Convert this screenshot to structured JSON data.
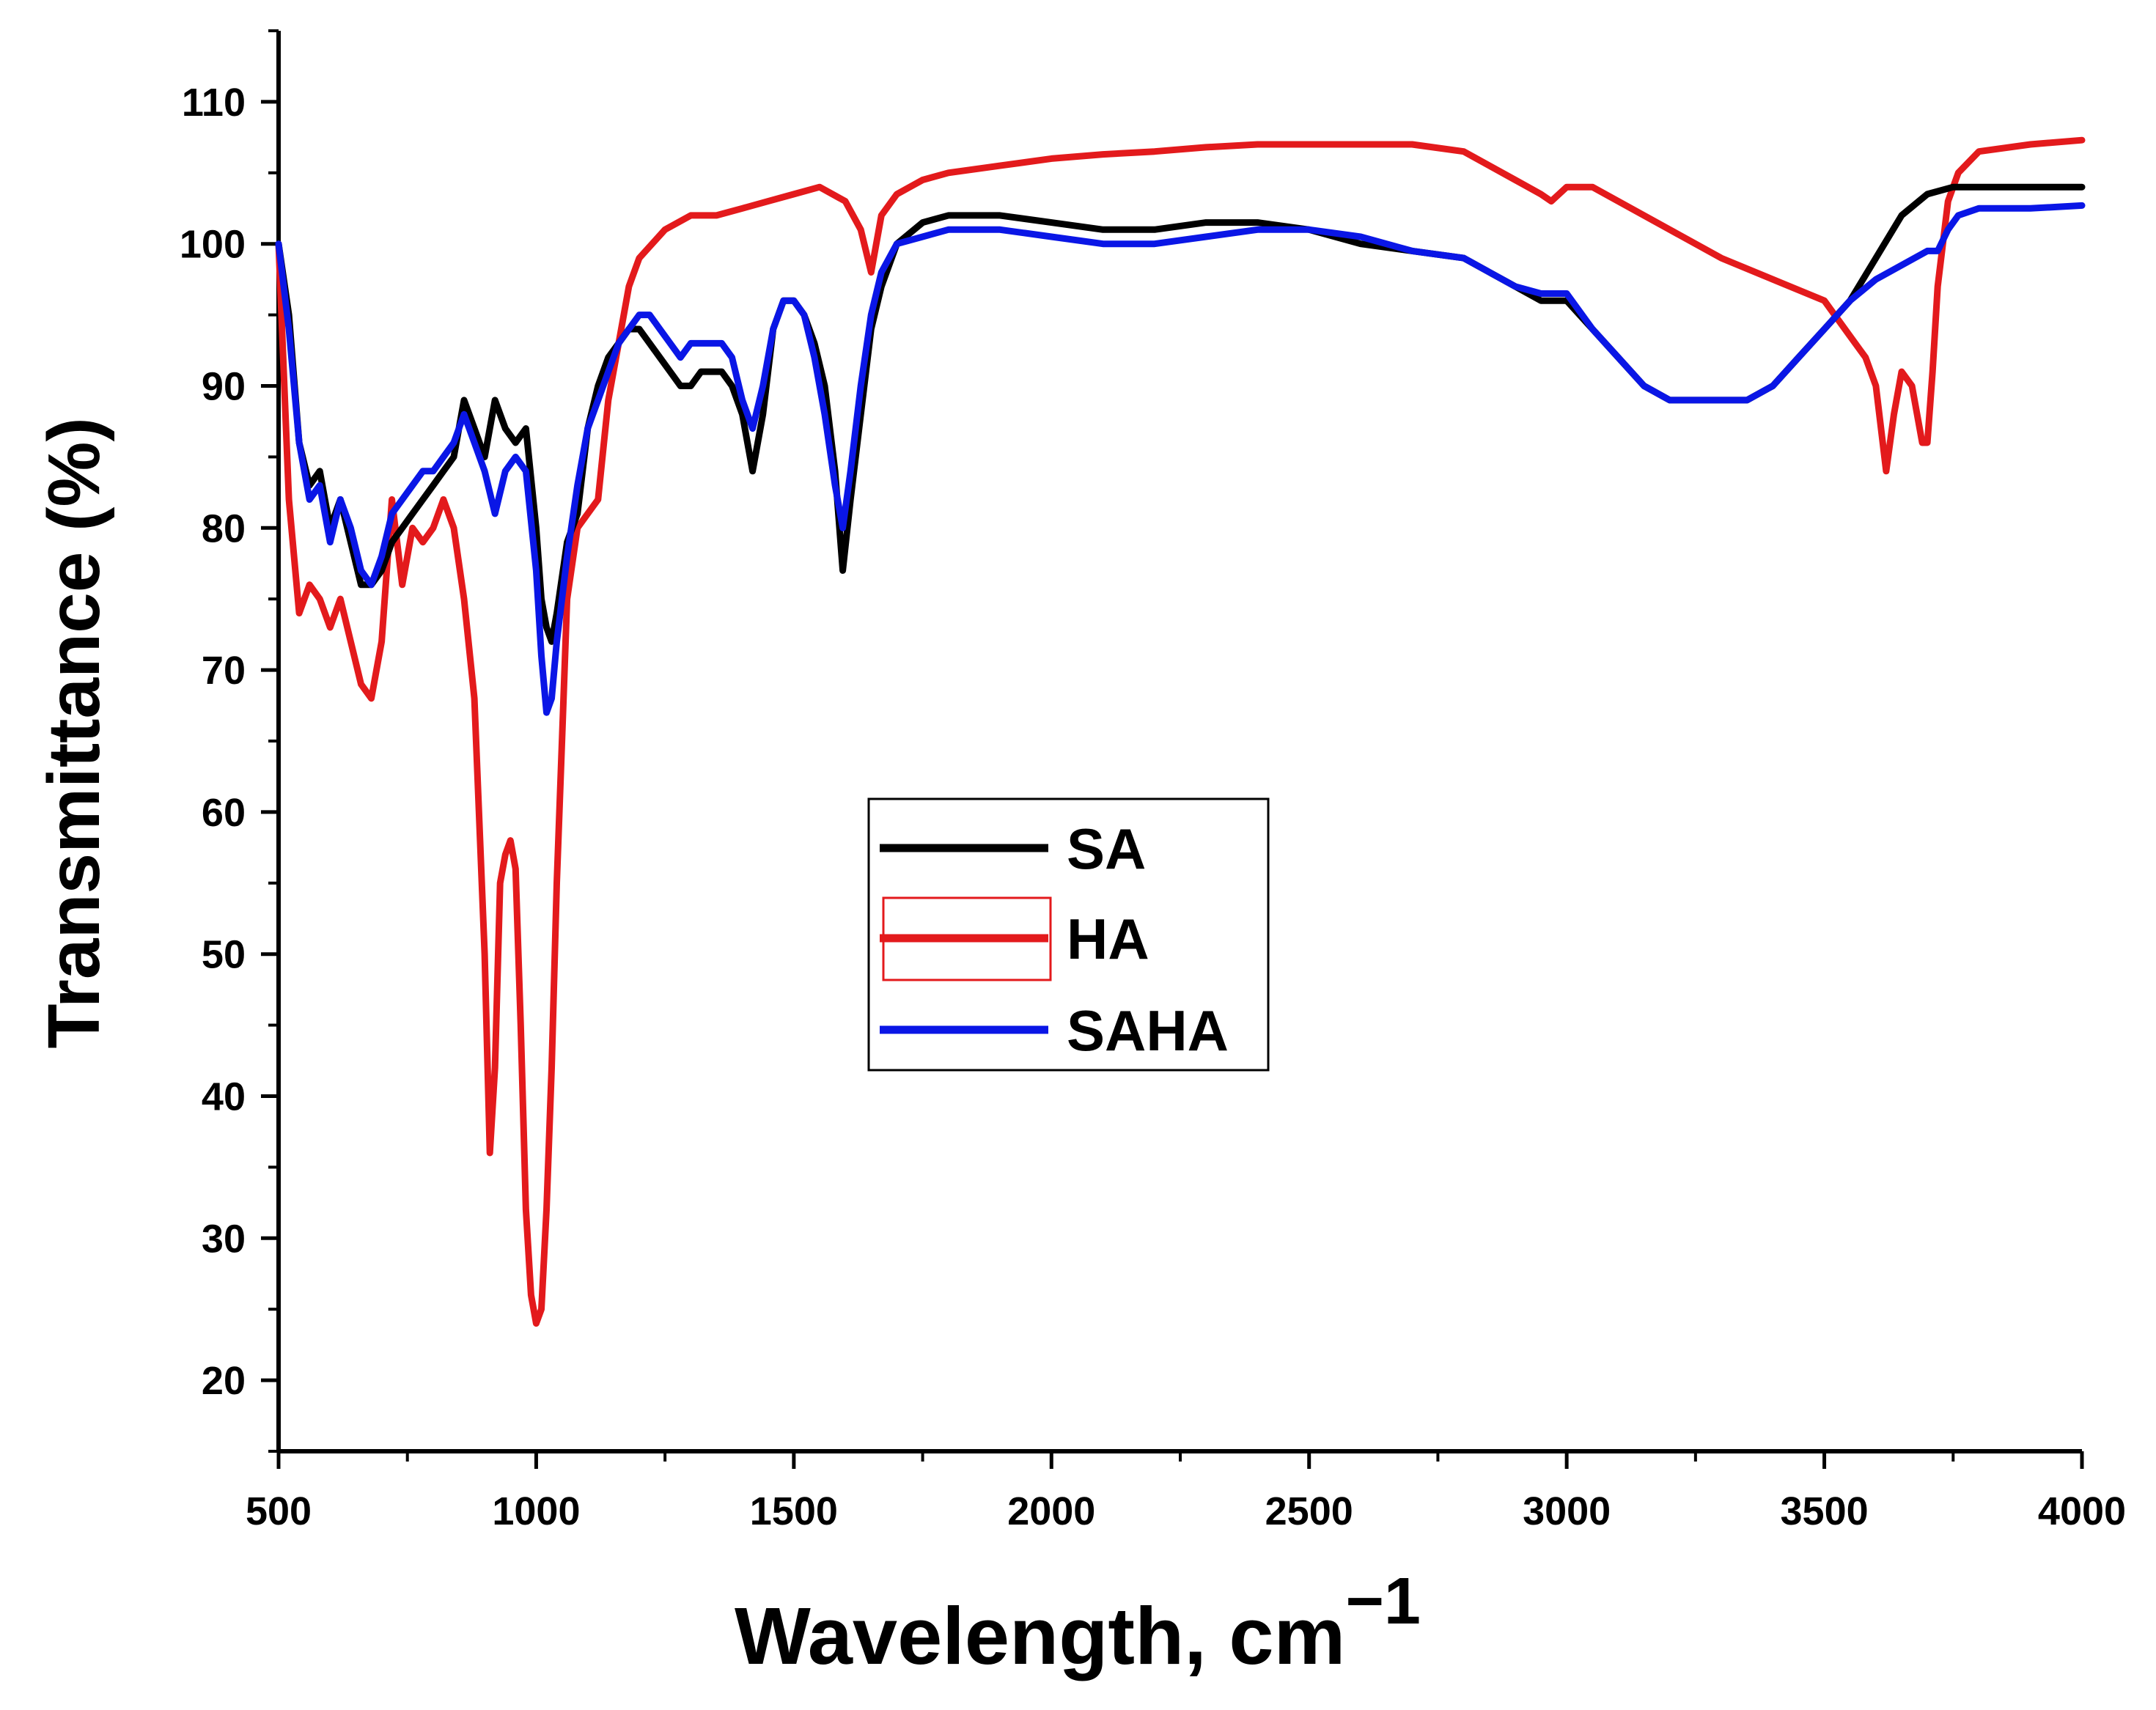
{
  "chart_data": {
    "type": "line",
    "title": "",
    "xlabel": "Wavelength, cm",
    "xlabel_superscript": "−1",
    "ylabel": "Transmittance (%)",
    "xlim": [
      500,
      4000
    ],
    "ylim": [
      15,
      115
    ],
    "xticks": [
      500,
      1000,
      1500,
      2000,
      2500,
      3000,
      3500,
      4000
    ],
    "yticks": [
      20,
      30,
      40,
      50,
      60,
      70,
      80,
      90,
      100,
      110
    ],
    "legend_position": "center",
    "series": [
      {
        "name": "SA",
        "color": "#000000",
        "x": [
          500,
          520,
          540,
          560,
          580,
          600,
          620,
          640,
          660,
          680,
          700,
          720,
          740,
          760,
          780,
          800,
          820,
          840,
          860,
          880,
          900,
          920,
          940,
          960,
          980,
          1000,
          1010,
          1020,
          1030,
          1040,
          1060,
          1080,
          1100,
          1120,
          1140,
          1160,
          1180,
          1200,
          1220,
          1240,
          1260,
          1280,
          1300,
          1320,
          1340,
          1360,
          1380,
          1400,
          1420,
          1440,
          1460,
          1480,
          1500,
          1520,
          1540,
          1560,
          1580,
          1595,
          1610,
          1630,
          1650,
          1670,
          1700,
          1750,
          1800,
          1850,
          1900,
          2000,
          2100,
          2200,
          2300,
          2400,
          2500,
          2600,
          2700,
          2800,
          2900,
          2950,
          3000,
          3050,
          3100,
          3150,
          3200,
          3250,
          3300,
          3350,
          3400,
          3450,
          3500,
          3550,
          3600,
          3650,
          3700,
          3750,
          3800,
          3900,
          4000
        ],
        "y": [
          100,
          95,
          86,
          83,
          84,
          80,
          82,
          79,
          76,
          76,
          77,
          79,
          80,
          81,
          82,
          83,
          84,
          85,
          89,
          87,
          85,
          89,
          87,
          86,
          87,
          80,
          75,
          73,
          72,
          74,
          79,
          81,
          87,
          90,
          92,
          93,
          94,
          94,
          93,
          92,
          91,
          90,
          90,
          91,
          91,
          91,
          90,
          88,
          84,
          88,
          94,
          96,
          96,
          95,
          93,
          90,
          84,
          77,
          82,
          88,
          94,
          97,
          100,
          101.5,
          102,
          102,
          102,
          101.5,
          101,
          101,
          101.5,
          101.5,
          101,
          100,
          99.5,
          99,
          97,
          96,
          96,
          94,
          92,
          90,
          89,
          89,
          89,
          89,
          90,
          92,
          94,
          96,
          99,
          102,
          103.5,
          104,
          104,
          104,
          104
        ]
      },
      {
        "name": "HA",
        "color": "#e31a1c",
        "x": [
          500,
          520,
          540,
          560,
          580,
          600,
          620,
          640,
          660,
          680,
          700,
          720,
          740,
          760,
          780,
          800,
          820,
          840,
          860,
          880,
          900,
          910,
          920,
          930,
          940,
          950,
          960,
          970,
          980,
          990,
          1000,
          1010,
          1020,
          1030,
          1040,
          1050,
          1060,
          1080,
          1100,
          1120,
          1140,
          1160,
          1180,
          1200,
          1250,
          1300,
          1350,
          1400,
          1450,
          1500,
          1550,
          1600,
          1630,
          1650,
          1670,
          1700,
          1750,
          1800,
          1900,
          2000,
          2100,
          2200,
          2300,
          2400,
          2500,
          2600,
          2700,
          2800,
          2850,
          2900,
          2950,
          2970,
          3000,
          3050,
          3100,
          3200,
          3300,
          3400,
          3500,
          3550,
          3580,
          3600,
          3620,
          3635,
          3650,
          3670,
          3690,
          3700,
          3710,
          3720,
          3740,
          3760,
          3800,
          3900,
          4000
        ],
        "y": [
          100,
          82,
          74,
          76,
          75,
          73,
          75,
          72,
          69,
          68,
          72,
          82,
          76,
          80,
          79,
          80,
          82,
          80,
          75,
          68,
          50,
          36,
          42,
          55,
          57,
          58,
          56,
          45,
          32,
          26,
          24,
          25,
          32,
          42,
          55,
          65,
          75,
          80,
          81,
          82,
          89,
          93,
          97,
          99,
          101,
          102,
          102,
          102.5,
          103,
          103.5,
          104,
          103,
          101,
          98,
          102,
          103.5,
          104.5,
          105,
          105.5,
          106,
          106.3,
          106.5,
          106.8,
          107,
          107,
          107,
          107,
          106.5,
          105.5,
          104.5,
          103.5,
          103,
          104,
          104,
          103,
          101,
          99,
          97.5,
          96,
          93.5,
          92,
          90,
          84,
          88,
          91,
          90,
          86,
          86,
          91,
          97,
          103,
          105,
          106.5,
          107,
          107.3
        ]
      },
      {
        "name": "SAHA",
        "color": "#0a16e6",
        "x": [
          500,
          520,
          540,
          560,
          580,
          600,
          620,
          640,
          660,
          680,
          700,
          720,
          740,
          760,
          780,
          800,
          820,
          840,
          860,
          880,
          900,
          920,
          940,
          960,
          980,
          1000,
          1010,
          1020,
          1030,
          1040,
          1060,
          1080,
          1100,
          1120,
          1140,
          1160,
          1180,
          1200,
          1220,
          1240,
          1260,
          1280,
          1300,
          1320,
          1340,
          1360,
          1380,
          1400,
          1420,
          1440,
          1460,
          1480,
          1500,
          1520,
          1540,
          1560,
          1580,
          1595,
          1610,
          1630,
          1650,
          1670,
          1700,
          1750,
          1800,
          1850,
          1900,
          2000,
          2100,
          2200,
          2300,
          2400,
          2500,
          2600,
          2700,
          2800,
          2900,
          2950,
          3000,
          3050,
          3100,
          3150,
          3200,
          3250,
          3300,
          3350,
          3400,
          3450,
          3500,
          3550,
          3600,
          3650,
          3700,
          3720,
          3740,
          3760,
          3800,
          3900,
          4000
        ],
        "y": [
          100,
          94,
          86,
          82,
          83,
          79,
          82,
          80,
          77,
          76,
          78,
          81,
          82,
          83,
          84,
          84,
          85,
          86,
          88,
          86,
          84,
          81,
          84,
          85,
          84,
          77,
          71,
          67,
          68,
          72,
          78,
          83,
          87,
          89,
          91,
          93,
          94,
          95,
          95,
          94,
          93,
          92,
          93,
          93,
          93,
          93,
          92,
          89,
          87,
          90,
          94,
          96,
          96,
          95,
          92,
          88,
          83,
          80,
          84,
          90,
          95,
          98,
          100,
          100.5,
          101,
          101,
          101,
          100.5,
          100,
          100,
          100.5,
          101,
          101,
          100.5,
          99.5,
          99,
          97,
          96.5,
          96.5,
          94,
          92,
          90,
          89,
          89,
          89,
          89,
          90,
          92,
          94,
          96,
          97.5,
          98.5,
          99.5,
          99.5,
          101,
          102,
          102.5,
          102.5,
          102.7
        ]
      }
    ]
  }
}
